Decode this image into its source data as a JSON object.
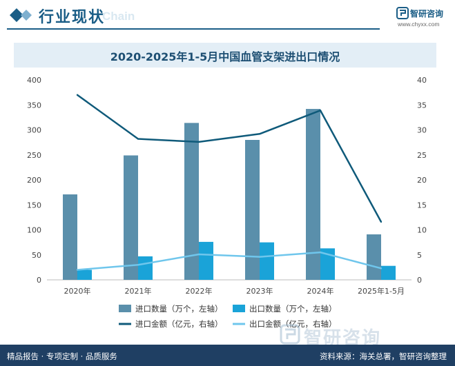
{
  "header": {
    "title": "行业现状",
    "ghost_text": "Chain",
    "logo_name": "智研咨询",
    "logo_url": "www.chyxx.com"
  },
  "footer": {
    "left": "精品报告 · 专项定制 · 品质服务",
    "right": "资料来源：海关总署，智研咨询整理",
    "watermark": "智研咨询"
  },
  "colors": {
    "brand": "#1a5d86",
    "import_qty": "#5a8fab",
    "export_qty": "#1aa3d8",
    "import_amt": "#0f5a7a",
    "export_amt": "#6fc6ec",
    "footer_bg": "#1f3f63"
  },
  "chart_data": {
    "type": "bar",
    "title": "2020-2025年1-5月中国血管支架进出口情况",
    "categories": [
      "2020年",
      "2021年",
      "2022年",
      "2023年",
      "2024年",
      "2025年1-5月"
    ],
    "y_left": {
      "min": 0,
      "max": 400,
      "ticks": [
        "0",
        "50",
        "100",
        "150",
        "200",
        "250",
        "300",
        "350",
        "400"
      ]
    },
    "y_right": {
      "min": 0,
      "max": 40,
      "ticks": [
        "0",
        "5",
        "10",
        "15",
        "20",
        "25",
        "30",
        "35",
        "40"
      ]
    },
    "series": [
      {
        "name": "进口数量（万个，左轴）",
        "type": "bar",
        "axis": "left",
        "color": "#5a8fab",
        "values": [
          171,
          249,
          314,
          280,
          342,
          91
        ]
      },
      {
        "name": "出口数量（万个，左轴）",
        "type": "bar",
        "axis": "left",
        "color": "#1aa3d8",
        "values": [
          20,
          47,
          76,
          75,
          63,
          28
        ]
      },
      {
        "name": "进口金额（亿元，右轴）",
        "type": "line",
        "axis": "right",
        "color": "#0f5a7a",
        "values": [
          37.0,
          28.2,
          27.6,
          29.2,
          33.9,
          11.6
        ]
      },
      {
        "name": "出口金额（亿元，右轴）",
        "type": "line",
        "axis": "right",
        "color": "#6fc6ec",
        "values": [
          2.0,
          3.0,
          5.1,
          4.6,
          5.5,
          2.3
        ]
      }
    ],
    "legend_position": "bottom",
    "grid": false
  }
}
